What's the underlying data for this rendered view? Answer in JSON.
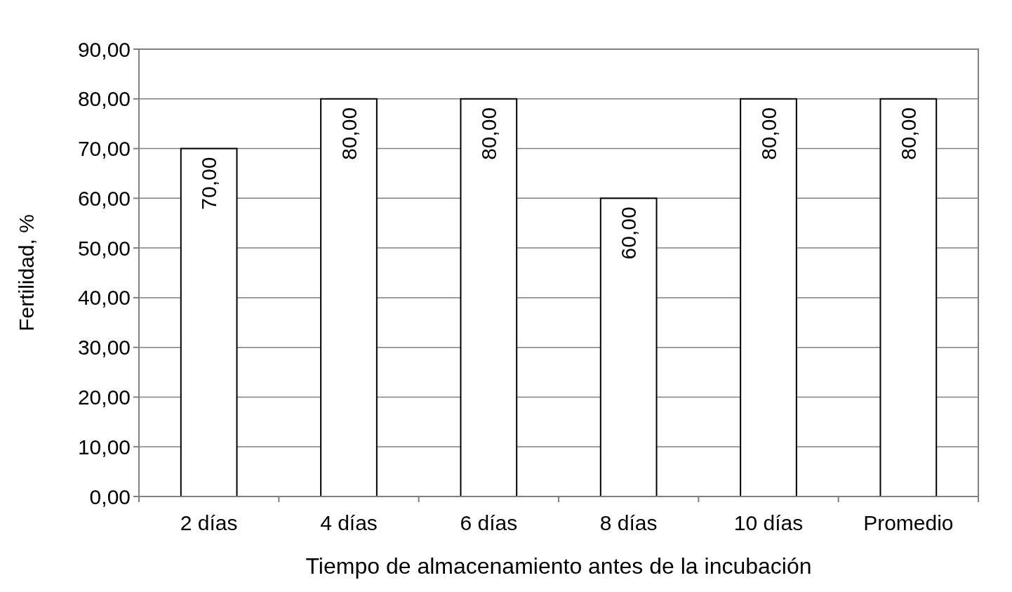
{
  "chart_data": {
    "type": "bar",
    "xlabel": "Tiempo de almacenamiento antes de la incubación",
    "ylabel": "Fertilidad, %",
    "categories": [
      "2 días",
      "4 días",
      "6 días",
      "8 días",
      "10 días",
      "Promedio"
    ],
    "values": [
      70,
      80,
      80,
      60,
      80,
      80
    ],
    "value_labels": [
      "70,00",
      "80,00",
      "80,00",
      "60,00",
      "80,00",
      "80,00"
    ],
    "color": "#ffffff",
    "ylim": [
      0,
      90
    ],
    "yticks": [
      {
        "value": 0,
        "label": "0,00"
      },
      {
        "value": 10,
        "label": "10,00"
      },
      {
        "value": 20,
        "label": "20,00"
      },
      {
        "value": 30,
        "label": "30,00"
      },
      {
        "value": 40,
        "label": "40,00"
      },
      {
        "value": 50,
        "label": "50,00"
      },
      {
        "value": 60,
        "label": "60,00"
      },
      {
        "value": 70,
        "label": "70,00"
      },
      {
        "value": 80,
        "label": "80,00"
      },
      {
        "value": 90,
        "label": "90,00"
      }
    ],
    "grid": "y"
  }
}
